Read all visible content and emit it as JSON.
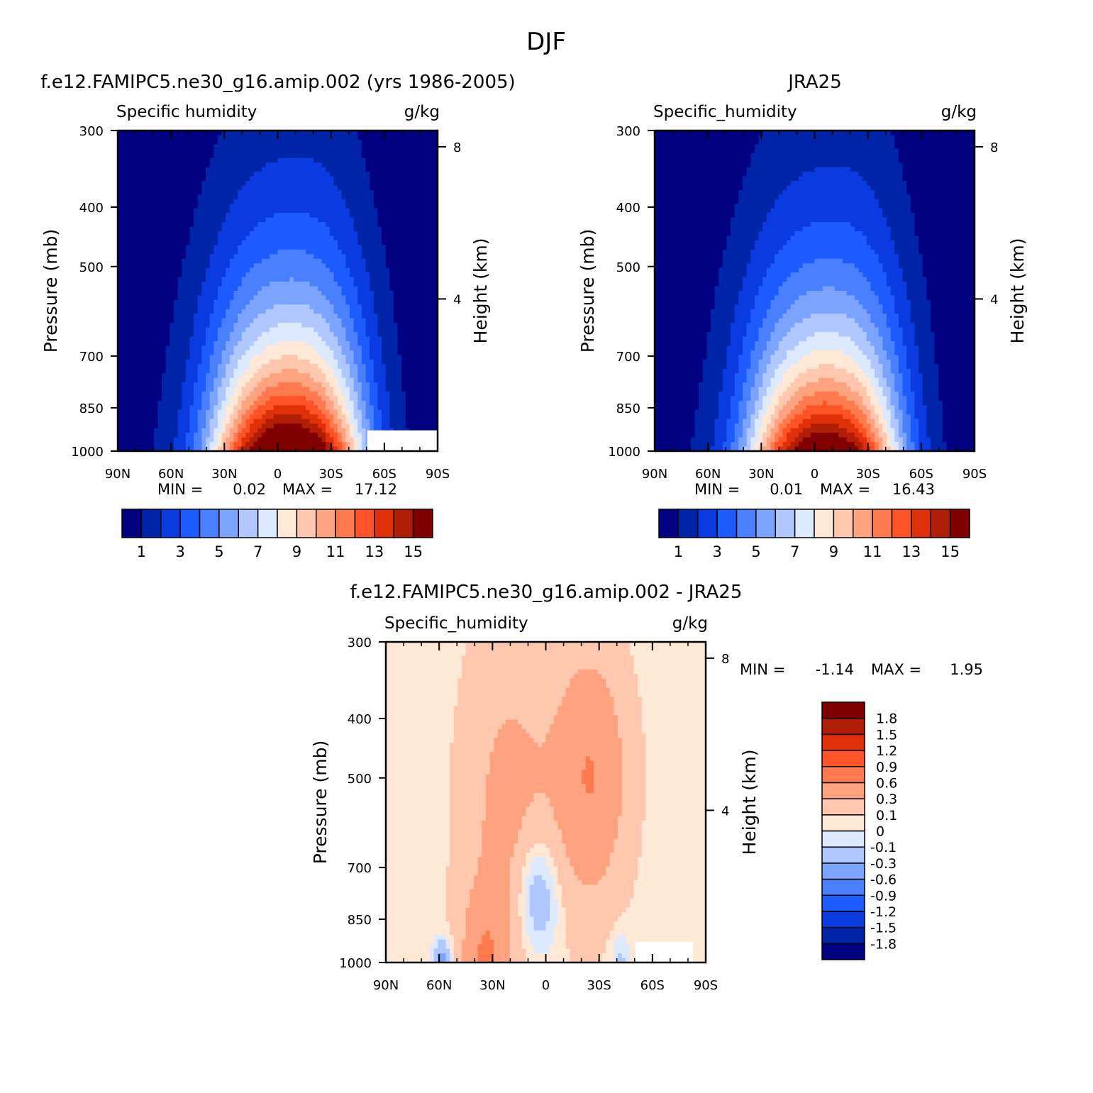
{
  "figure_title": "DJF",
  "colors": {
    "abs_levels": [
      "#000080",
      "#0024a8",
      "#0a3be0",
      "#1e5bff",
      "#4a80ff",
      "#7ca4ff",
      "#b0c8ff",
      "#dce9ff",
      "#ffe8d6",
      "#ffc8ae",
      "#ffa280",
      "#ff7a4e",
      "#ff5226",
      "#e0300a",
      "#b01e05",
      "#800000"
    ],
    "diff_levels": [
      "#000080",
      "#0024a8",
      "#0a3be0",
      "#1e5bff",
      "#4a80ff",
      "#7ca4ff",
      "#b0c8ff",
      "#dce9ff",
      "#ffe8d6",
      "#ffc8ae",
      "#ffa280",
      "#ff7a4e",
      "#ff5226",
      "#e0300a",
      "#b01e05",
      "#800000"
    ]
  },
  "chart_data": [
    {
      "type": "heatmap",
      "title": "f.e12.FAMIPC5.ne30_g16.amip.002 (yrs 1986-2005)",
      "subtitle_left": "Specific humidity",
      "subtitle_right": "g/kg",
      "ylabel": "Pressure (mb)",
      "ylabel_right": "Height (km)",
      "x_ticks": [
        "90N",
        "60N",
        "30N",
        "0",
        "30S",
        "60S",
        "90S"
      ],
      "y_ticks": [
        "300",
        "400",
        "500",
        "700",
        "850",
        "1000"
      ],
      "y_ticks_right": [
        "8",
        "4"
      ],
      "stats": {
        "min_label": "MIN =",
        "min": "0.02",
        "max_label": "MAX =",
        "max": "17.12"
      },
      "colorbar_labels": [
        "1",
        "3",
        "5",
        "7",
        "9",
        "11",
        "13",
        "15"
      ],
      "peak": 17.12,
      "ylim": [
        1000,
        300
      ]
    },
    {
      "type": "heatmap",
      "title": "JRA25",
      "subtitle_left": "Specific_humidity",
      "subtitle_right": "g/kg",
      "ylabel": "Pressure (mb)",
      "ylabel_right": "Height (km)",
      "x_ticks": [
        "90N",
        "60N",
        "30N",
        "0",
        "30S",
        "60S",
        "90S"
      ],
      "y_ticks": [
        "300",
        "400",
        "500",
        "700",
        "850",
        "1000"
      ],
      "y_ticks_right": [
        "8",
        "4"
      ],
      "stats": {
        "min_label": "MIN =",
        "min": "0.01",
        "max_label": "MAX =",
        "max": "16.43"
      },
      "colorbar_labels": [
        "1",
        "3",
        "5",
        "7",
        "9",
        "11",
        "13",
        "15"
      ],
      "peak": 16.43,
      "ylim": [
        1000,
        300
      ]
    },
    {
      "type": "heatmap",
      "title": "f.e12.FAMIPC5.ne30_g16.amip.002 - JRA25",
      "subtitle_left": "Specific_humidity",
      "subtitle_right": "g/kg",
      "ylabel": "Pressure (mb)",
      "ylabel_right": "Height (km)",
      "x_ticks": [
        "90N",
        "60N",
        "30N",
        "0",
        "30S",
        "60S",
        "90S"
      ],
      "y_ticks": [
        "300",
        "400",
        "500",
        "700",
        "850",
        "1000"
      ],
      "y_ticks_right": [
        "8",
        "4"
      ],
      "stats": {
        "min_label": "MIN =",
        "min": "-1.14",
        "max_label": "MAX =",
        "max": "1.95"
      },
      "colorbar_labels": [
        "1.8",
        "1.5",
        "1.2",
        "0.9",
        "0.6",
        "0.3",
        "0.1",
        "0",
        "-0.1",
        "-0.3",
        "-0.6",
        "-0.9",
        "-1.2",
        "-1.5",
        "-1.8"
      ],
      "ylim": [
        1000,
        300
      ]
    }
  ]
}
